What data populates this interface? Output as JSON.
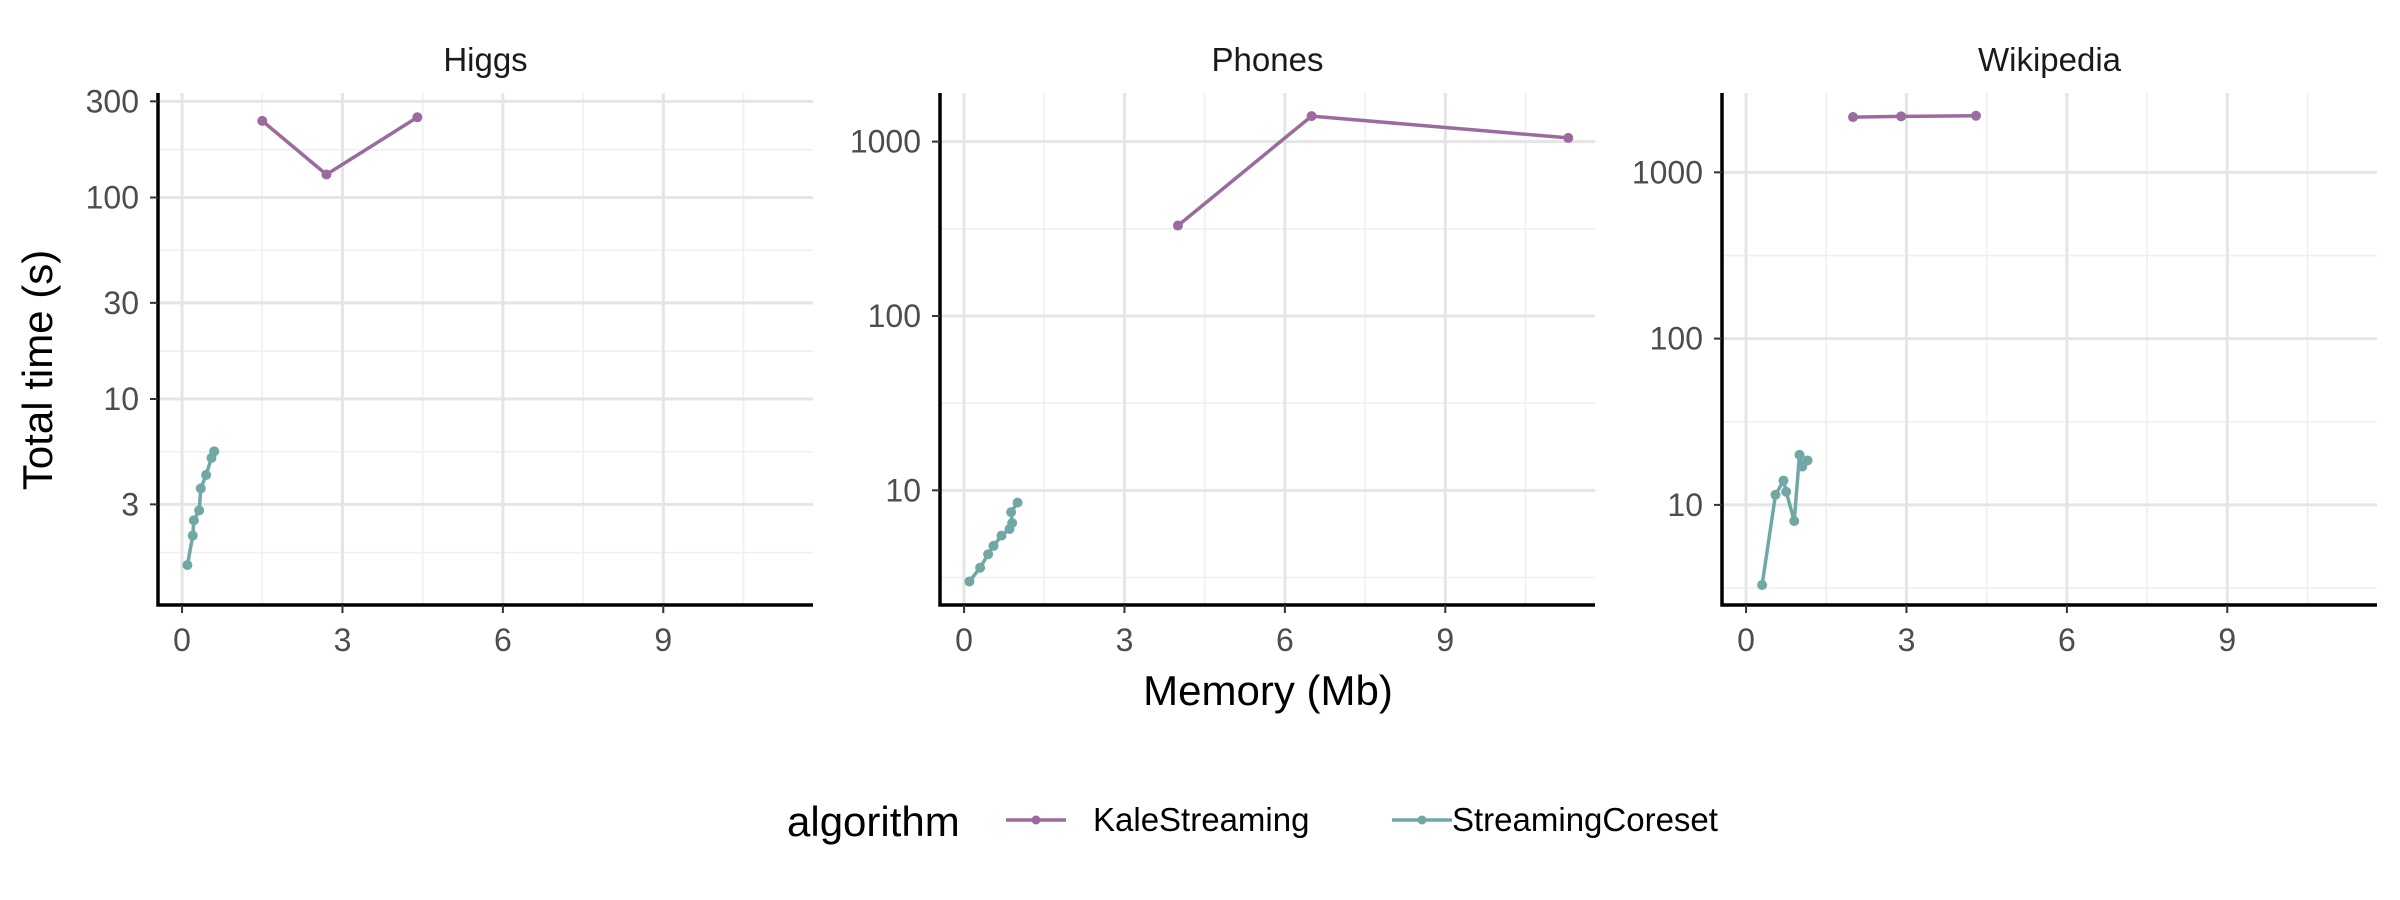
{
  "chart_data": {
    "type": "line",
    "xlabel": "Memory (Mb)",
    "ylabel": "Total time (s)",
    "y_scale": "log10",
    "x_ticks": [
      0,
      3,
      6,
      9
    ],
    "xlim": [
      -0.45,
      11.8
    ],
    "grid": true,
    "legend": {
      "title": "algorithm",
      "position": "bottom",
      "entries": [
        "KaleStreaming",
        "StreamingCoreset"
      ]
    },
    "colors": {
      "KaleStreaming": "#9B6B9E",
      "StreamingCoreset": "#6FA8A4"
    },
    "panels": [
      {
        "name": "Higgs",
        "ylim": [
          0.95,
          330
        ],
        "y_major": [
          3,
          10,
          30,
          100,
          300
        ],
        "y_major_labels": [
          "3",
          "10",
          "30",
          "100",
          "300"
        ],
        "y_minor": [
          1.73,
          5.48,
          17.3,
          54.8,
          173
        ],
        "series": [
          {
            "name": "KaleStreaming",
            "x": [
              1.5,
              2.7,
              4.4
            ],
            "y": [
              240,
              130,
              250
            ]
          },
          {
            "name": "StreamingCoreset",
            "x": [
              0.1,
              0.2,
              0.22,
              0.32,
              0.35,
              0.45,
              0.55,
              0.6
            ],
            "y": [
              1.5,
              2.1,
              2.5,
              2.8,
              3.6,
              4.2,
              5.1,
              5.5
            ]
          }
        ]
      },
      {
        "name": "Phones",
        "ylim": [
          2.2,
          1900
        ],
        "y_major": [
          10,
          100,
          1000
        ],
        "y_major_labels": [
          "10",
          "100",
          "1000"
        ],
        "y_minor": [
          3.16,
          31.6,
          316
        ],
        "series": [
          {
            "name": "KaleStreaming",
            "x": [
              4.0,
              6.5,
              11.3
            ],
            "y": [
              330,
              1400,
              1050
            ]
          },
          {
            "name": "StreamingCoreset",
            "x": [
              0.1,
              0.3,
              0.45,
              0.55,
              0.7,
              0.85,
              0.9,
              0.88,
              1.0
            ],
            "y": [
              3.0,
              3.6,
              4.3,
              4.8,
              5.5,
              6.0,
              6.5,
              7.5,
              8.5
            ]
          }
        ]
      },
      {
        "name": "Wikipedia",
        "ylim": [
          2.5,
          3000
        ],
        "y_major": [
          10,
          100,
          1000
        ],
        "y_major_labels": [
          "10",
          "100",
          "1000"
        ],
        "y_minor": [
          3.16,
          31.6,
          316
        ],
        "series": [
          {
            "name": "KaleStreaming",
            "x": [
              2.0,
              2.9,
              4.3
            ],
            "y": [
              2150,
              2170,
              2190
            ]
          },
          {
            "name": "StreamingCoreset",
            "x": [
              0.3,
              0.55,
              0.7,
              0.75,
              0.9,
              1.0,
              1.05,
              1.15
            ],
            "y": [
              3.3,
              11.5,
              14,
              12,
              8.0,
              20,
              17,
              18.5
            ]
          }
        ]
      }
    ]
  }
}
